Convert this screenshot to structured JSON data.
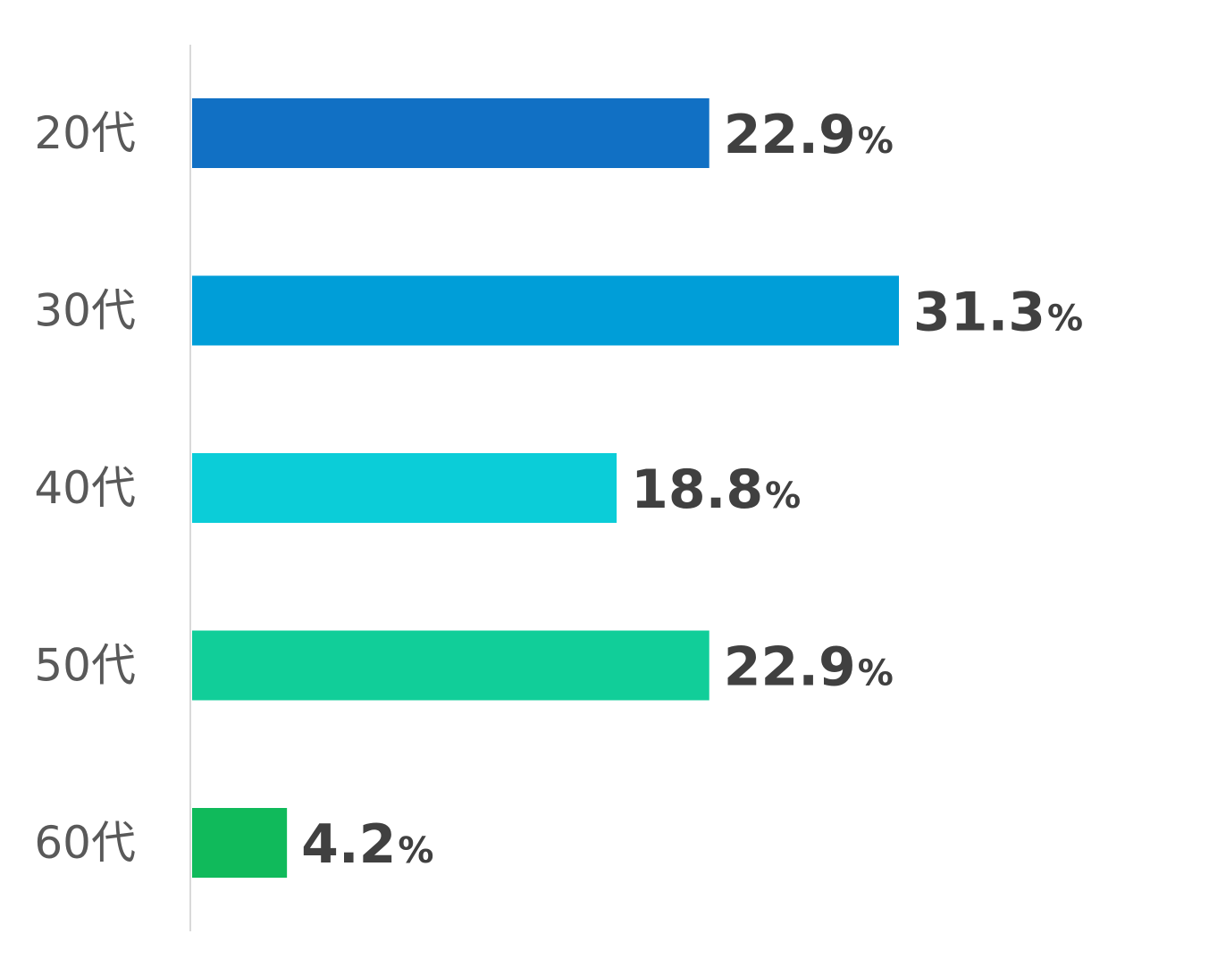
{
  "chart_data": {
    "type": "bar",
    "orientation": "horizontal",
    "categories": [
      "20代",
      "30代",
      "40代",
      "50代",
      "60代"
    ],
    "values": [
      22.9,
      31.3,
      18.8,
      22.9,
      4.2
    ],
    "value_labels": [
      "22.9",
      "31.3",
      "18.8",
      "22.9",
      "4.2"
    ],
    "unit": "%",
    "colors": [
      "#1170C4",
      "#009ED8",
      "#0BCDD8",
      "#11CE99",
      "#10BA5B"
    ],
    "axis_color": "#D9D9D9",
    "title": "",
    "xlabel": "",
    "ylabel": "",
    "grid": false,
    "legend": false
  }
}
